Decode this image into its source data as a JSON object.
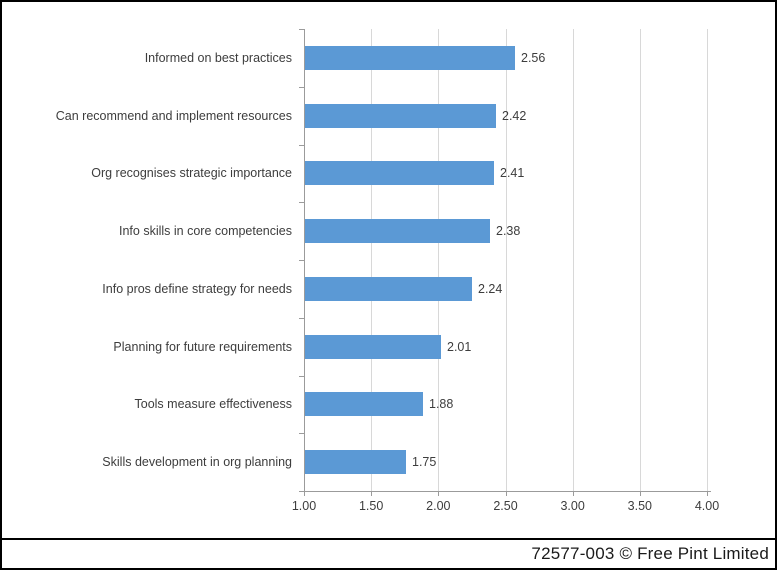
{
  "footer": {
    "credit": "72577-003 © Free Pint Limited"
  },
  "chart_data": {
    "type": "bar",
    "orientation": "horizontal",
    "title": "",
    "categories": [
      "Informed on best practices",
      "Can recommend and implement resources",
      "Org recognises strategic importance",
      "Info skills in core competencies",
      "Info pros define strategy for needs",
      "Planning for future requirements",
      "Tools measure effectiveness",
      "Skills development in org planning"
    ],
    "values": [
      2.56,
      2.42,
      2.41,
      2.38,
      2.24,
      2.01,
      1.88,
      1.75
    ],
    "data_labels": [
      "2.56",
      "2.42",
      "2.41",
      "2.38",
      "2.24",
      "2.01",
      "1.88",
      "1.75"
    ],
    "xlim": [
      1.0,
      4.0
    ],
    "x_tick_step": 0.5,
    "x_tick_labels": [
      "1.00",
      "1.50",
      "2.00",
      "2.50",
      "3.00",
      "3.50",
      "4.00"
    ],
    "grid": "vertical",
    "legend": "none",
    "colors": {
      "bar_fill": "#5B99D5",
      "gridline": "#D8D8D8",
      "axis_line": "#9B9B9B",
      "text": "#3D3D3D",
      "footer_text": "#1A1A1A",
      "border": "#000000"
    }
  }
}
